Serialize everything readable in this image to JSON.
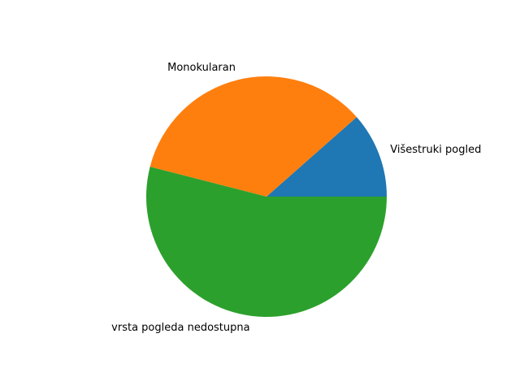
{
  "chart_data": {
    "type": "pie",
    "title": "",
    "start_angle_deg": 0,
    "direction": "counterclockwise",
    "slices": [
      {
        "label": "Višestruki pogled",
        "value": 11.5,
        "color": "#1f77b4"
      },
      {
        "label": "Monokularan",
        "value": 34.5,
        "color": "#ff7f0e"
      },
      {
        "label": "vrsta pogleda nedostupna",
        "value": 54.0,
        "color": "#2ca02c"
      }
    ]
  }
}
